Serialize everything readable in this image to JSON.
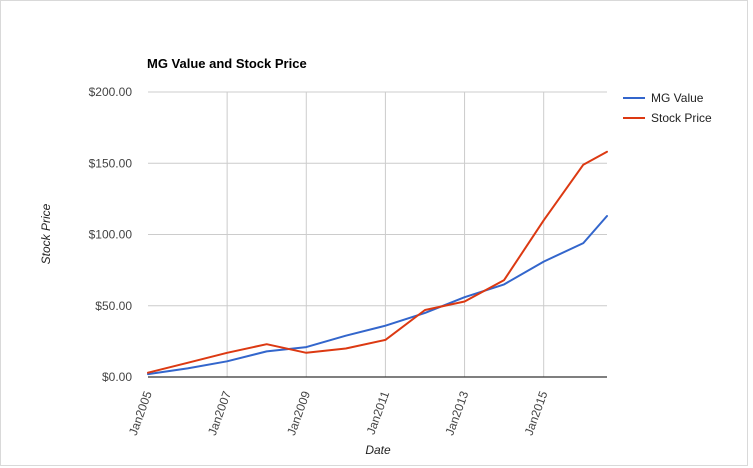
{
  "chart_data": {
    "type": "line",
    "title": "MG Value and Stock Price",
    "xlabel": "Date",
    "ylabel": "Stock Price",
    "x_tick_labels": [
      "Jan2005",
      "Jan2007",
      "Jan2009",
      "Jan2011",
      "Jan2013",
      "Jan2015"
    ],
    "x_ticks": [
      2005,
      2007,
      2009,
      2011,
      2013,
      2015
    ],
    "xlim": [
      2005,
      2016.6
    ],
    "y_tick_labels": [
      "$0.00",
      "$50.00",
      "$100.00",
      "$150.00",
      "$200.00"
    ],
    "y_ticks": [
      0,
      50,
      100,
      150,
      200
    ],
    "ylim": [
      0,
      200
    ],
    "grid": true,
    "legend_position": "right",
    "series": [
      {
        "name": "MG Value",
        "color": "#3366cc",
        "x": [
          2005,
          2006,
          2007,
          2008,
          2009,
          2010,
          2011,
          2012,
          2013,
          2014,
          2015,
          2016,
          2016.6
        ],
        "y": [
          2,
          6,
          11,
          18,
          21,
          29,
          36,
          45,
          56,
          65,
          81,
          94,
          113
        ]
      },
      {
        "name": "Stock Price",
        "color": "#dc3912",
        "x": [
          2005,
          2006,
          2007,
          2008,
          2009,
          2010,
          2011,
          2012,
          2013,
          2014,
          2015,
          2016,
          2016.6
        ],
        "y": [
          3,
          10,
          17,
          23,
          17,
          20,
          26,
          47,
          53,
          68,
          110,
          149,
          158
        ]
      }
    ]
  }
}
